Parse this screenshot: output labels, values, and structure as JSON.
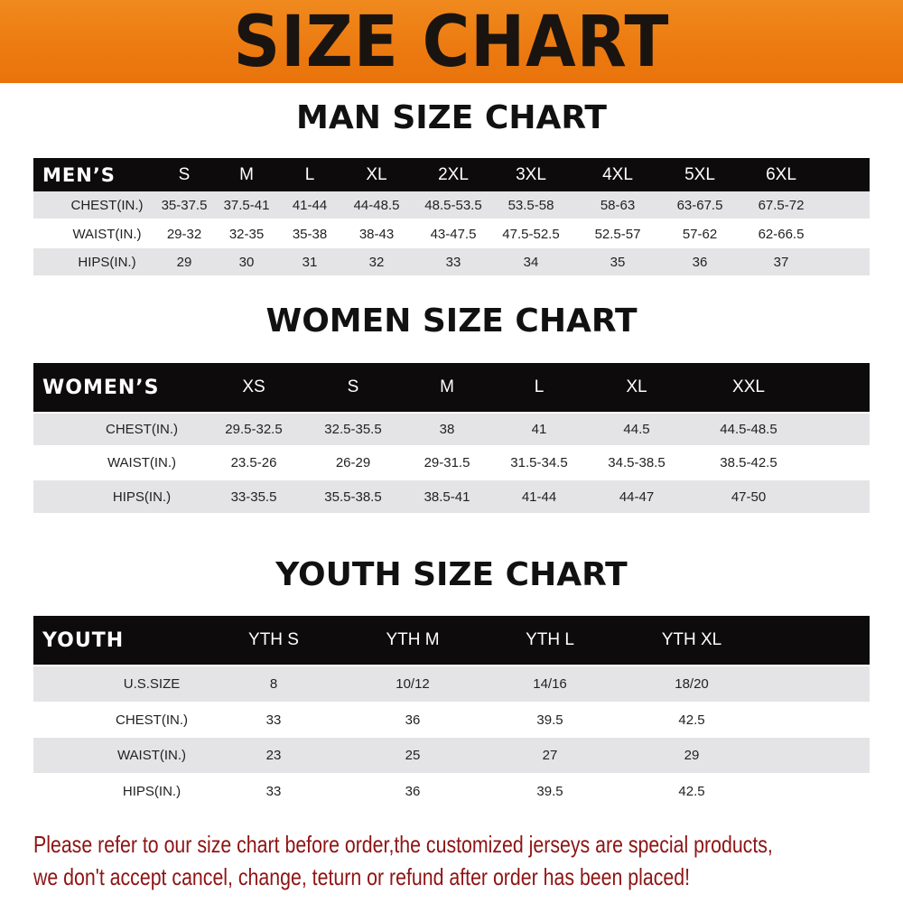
{
  "banner": {
    "title": "SIZE CHART",
    "color": "#ec7a10"
  },
  "men": {
    "title": "MAN SIZE CHART",
    "header": [
      "MEN’S",
      "S",
      "M",
      "L",
      "XL",
      "2XL",
      "3XL",
      "4XL",
      "5XL",
      "6XL"
    ],
    "rows": [
      [
        "CHEST(IN.)",
        "35-37.5",
        "37.5-41",
        "41-44",
        "44-48.5",
        "48.5-53.5",
        "53.5-58",
        "58-63",
        "63-67.5",
        "67.5-72"
      ],
      [
        "WAIST(IN.)",
        "29-32",
        "32-35",
        "35-38",
        "38-43",
        "43-47.5",
        "47.5-52.5",
        "52.5-57",
        "57-62",
        "62-66.5"
      ],
      [
        "HIPS(IN.)",
        "29",
        "30",
        "31",
        "32",
        "33",
        "34",
        "35",
        "36",
        "37"
      ]
    ]
  },
  "women": {
    "title": "WOMEN SIZE CHART",
    "header": [
      "WOMEN’S",
      "XS",
      "S",
      "M",
      "L",
      "XL",
      "XXL"
    ],
    "rows": [
      [
        "CHEST(IN.)",
        "29.5-32.5",
        "32.5-35.5",
        "38",
        "41",
        "44.5",
        "44.5-48.5"
      ],
      [
        "WAIST(IN.)",
        "23.5-26",
        "26-29",
        "29-31.5",
        "31.5-34.5",
        "34.5-38.5",
        "38.5-42.5"
      ],
      [
        "HIPS(IN.)",
        "33-35.5",
        "35.5-38.5",
        "38.5-41",
        "41-44",
        "44-47",
        "47-50"
      ]
    ]
  },
  "youth": {
    "title": "YOUTH SIZE CHART",
    "header": [
      "YOUTH",
      "YTH S",
      "YTH M",
      "YTH L",
      "YTH XL"
    ],
    "rows": [
      [
        "U.S.SIZE",
        "8",
        "10/12",
        "14/16",
        "18/20"
      ],
      [
        "CHEST(IN.)",
        "33",
        "36",
        "39.5",
        "42.5"
      ],
      [
        "WAIST(IN.)",
        "23",
        "25",
        "27",
        "29"
      ],
      [
        "HIPS(IN.)",
        "33",
        "36",
        "39.5",
        "42.5"
      ]
    ]
  },
  "notice": {
    "line1": "Please refer to our size chart before order,the customized jerseys are special products,",
    "line2": "we don't accept cancel, change, teturn or refund after order has been placed!",
    "color": "#8e1414"
  }
}
